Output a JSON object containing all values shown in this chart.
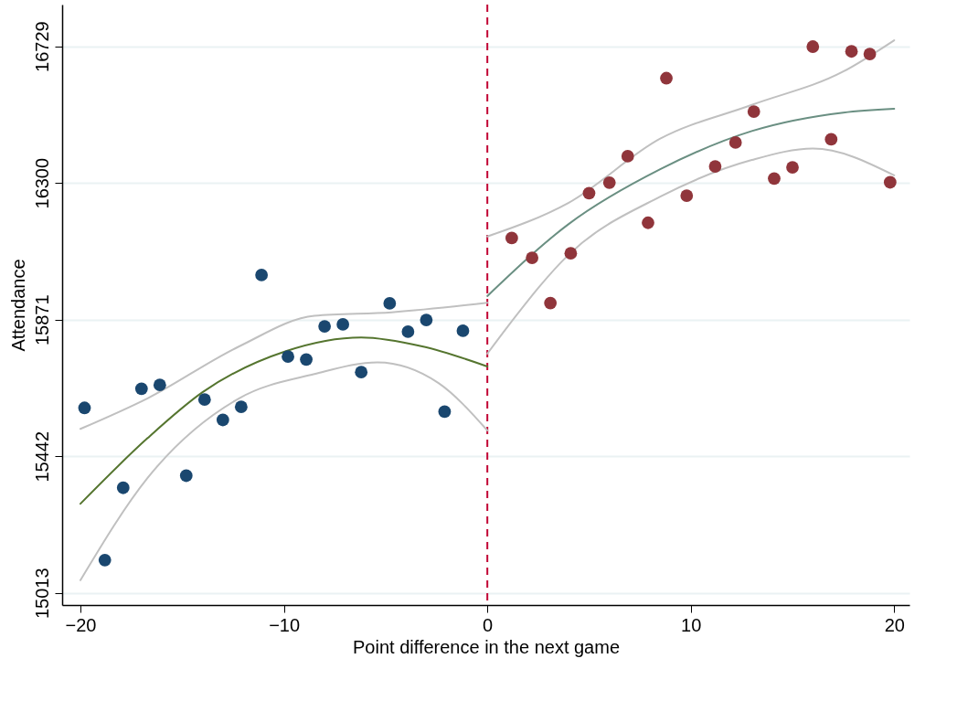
{
  "chart_data": {
    "type": "scatter",
    "xlabel": "Point difference in the next game",
    "ylabel": "Attendance",
    "xlim": [
      -20.9,
      20.75
    ],
    "ylim": [
      14975,
      16860
    ],
    "xticks": [
      -20,
      -10,
      0,
      10,
      20
    ],
    "yticks": [
      15013,
      15442,
      15871,
      16300,
      16729
    ],
    "grid": "y",
    "marker": "circle",
    "series": [
      {
        "color": "#1a476f",
        "x": [
          -19.8,
          -18.8,
          -17.9,
          -17.0,
          -16.1,
          -14.8,
          -13.9,
          -13.0,
          -12.1,
          -11.1,
          -9.8,
          -8.9,
          -8.0,
          -7.1,
          -6.2,
          -4.8,
          -3.9,
          -3.0,
          -2.1,
          -1.2
        ],
        "values": [
          15594,
          15116,
          15343,
          15654,
          15666,
          15381,
          15620,
          15556,
          15597,
          16011,
          15755,
          15746,
          15850,
          15856,
          15706,
          15922,
          15833,
          15870,
          15582,
          15836
        ]
      },
      {
        "color": "#90353b",
        "x": [
          1.2,
          2.2,
          3.1,
          4.1,
          5.0,
          6.0,
          6.9,
          7.9,
          8.8,
          9.8,
          11.2,
          12.2,
          13.1,
          14.1,
          15.0,
          16.0,
          16.9,
          17.9,
          18.8,
          19.8
        ],
        "values": [
          16127,
          16065,
          15923,
          16079,
          16268,
          16301,
          16384,
          16175,
          16629,
          16260,
          16352,
          16427,
          16524,
          16314,
          16349,
          16728,
          16437,
          16713,
          16705,
          16302
        ]
      },
      {
        "type": "line",
        "color": "#c0c0c0",
        "marker": "none",
        "x": [
          -20,
          -16.7,
          -12.2,
          -8.5,
          -4.7,
          0
        ],
        "values": [
          15528,
          15624,
          15787,
          15883,
          15894,
          15924
        ]
      },
      {
        "type": "line",
        "color": "#c0c0c0",
        "marker": "none",
        "x": [
          -20,
          -16.7,
          -12.2,
          -8.5,
          -5.4,
          -2.4,
          0
        ],
        "values": [
          15053,
          15374,
          15624,
          15700,
          15737,
          15672,
          15523
        ]
      },
      {
        "type": "line",
        "color": "#c0c0c0",
        "marker": "none",
        "x": [
          0,
          4.0,
          8.5,
          13.0,
          17.5,
          20
        ],
        "values": [
          16132,
          16238,
          16439,
          16545,
          16650,
          16748
        ]
      },
      {
        "type": "line",
        "color": "#c0c0c0",
        "marker": "none",
        "x": [
          0,
          1.0,
          4.0,
          8.5,
          13.0,
          16.0,
          20
        ],
        "values": [
          15764,
          15849,
          16075,
          16257,
          16372,
          16408,
          16324
        ]
      },
      {
        "type": "line",
        "color": "#55752f",
        "marker": "none",
        "x": [
          -20,
          -16.7,
          -14.0,
          -9.9,
          -6.2,
          -3.2,
          0
        ],
        "values": [
          15293,
          15499,
          15643,
          15772,
          15815,
          15787,
          15724
        ]
      },
      {
        "type": "line",
        "color": "#6a8f82",
        "marker": "none",
        "x": [
          0,
          4.0,
          8.5,
          13.0,
          17.5,
          20
        ],
        "values": [
          15945,
          16171,
          16343,
          16463,
          16521,
          16533
        ]
      }
    ],
    "ref_lines": [
      {
        "axis": "x",
        "value": 0,
        "color": "#c10534",
        "line_style": "dashed"
      }
    ]
  }
}
